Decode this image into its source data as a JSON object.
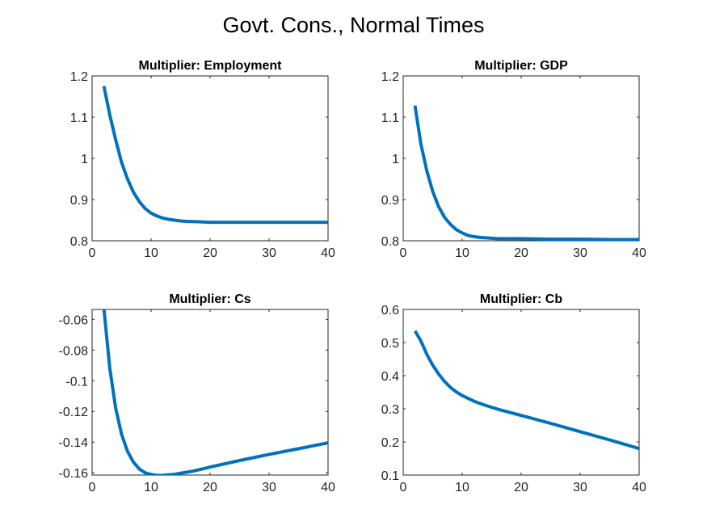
{
  "figure": {
    "title": "Govt. Cons., Normal Times",
    "line_color": "#0072BD"
  },
  "chart_data": [
    {
      "type": "line",
      "title": "Multiplier: Employment",
      "xlim": [
        0,
        40
      ],
      "ylim": [
        0.8,
        1.2
      ],
      "xticks": [
        "0",
        "10",
        "20",
        "30",
        "40"
      ],
      "yticks": [
        "0.8",
        "0.9",
        "1",
        "1.1",
        "1.2"
      ],
      "series": [
        {
          "x": [
            2,
            3,
            4,
            5,
            6,
            7,
            8,
            9,
            10,
            11,
            12,
            13,
            14,
            15,
            16,
            18,
            20,
            25,
            30,
            35,
            40
          ],
          "y": [
            1.175,
            1.105,
            1.045,
            0.99,
            0.95,
            0.918,
            0.895,
            0.878,
            0.867,
            0.86,
            0.855,
            0.852,
            0.85,
            0.848,
            0.847,
            0.846,
            0.845,
            0.845,
            0.845,
            0.845,
            0.845
          ]
        }
      ]
    },
    {
      "type": "line",
      "title": "Multiplier: GDP",
      "xlim": [
        0,
        40
      ],
      "ylim": [
        0.8,
        1.2
      ],
      "xticks": [
        "0",
        "10",
        "20",
        "30",
        "40"
      ],
      "yticks": [
        "0.8",
        "0.9",
        "1",
        "1.1",
        "1.2"
      ],
      "series": [
        {
          "x": [
            2,
            3,
            4,
            5,
            6,
            7,
            8,
            9,
            10,
            11,
            12,
            13,
            14,
            15,
            16,
            18,
            20,
            25,
            30,
            35,
            40
          ],
          "y": [
            1.128,
            1.035,
            0.97,
            0.92,
            0.883,
            0.857,
            0.84,
            0.827,
            0.819,
            0.813,
            0.81,
            0.808,
            0.807,
            0.806,
            0.805,
            0.805,
            0.805,
            0.804,
            0.804,
            0.803,
            0.803
          ]
        }
      ]
    },
    {
      "type": "line",
      "title": "Multiplier: Cs",
      "xlim": [
        0,
        40
      ],
      "ylim": [
        -0.1615,
        -0.0535
      ],
      "xticks": [
        "0",
        "10",
        "20",
        "30",
        "40"
      ],
      "yticks": [
        "-0.16",
        "-0.14",
        "-0.12",
        "-0.1",
        "-0.08",
        "-0.06"
      ],
      "ytick_values": [
        -0.16,
        -0.14,
        -0.12,
        -0.1,
        -0.08,
        -0.06
      ],
      "series": [
        {
          "x": [
            2,
            3,
            4,
            5,
            6,
            7,
            8,
            9,
            10,
            11,
            12,
            13,
            14,
            15,
            17,
            20,
            25,
            30,
            35,
            40
          ],
          "y": [
            -0.053,
            -0.092,
            -0.118,
            -0.135,
            -0.146,
            -0.153,
            -0.1575,
            -0.16,
            -0.1612,
            -0.1617,
            -0.1617,
            -0.1613,
            -0.161,
            -0.1603,
            -0.159,
            -0.1563,
            -0.152,
            -0.148,
            -0.1443,
            -0.1405
          ]
        }
      ]
    },
    {
      "type": "line",
      "title": "Multiplier: Cb",
      "xlim": [
        0,
        40
      ],
      "ylim": [
        0.1,
        0.6
      ],
      "xticks": [
        "0",
        "10",
        "20",
        "30",
        "40"
      ],
      "yticks": [
        "0.1",
        "0.2",
        "0.3",
        "0.4",
        "0.5",
        "0.6"
      ],
      "series": [
        {
          "x": [
            2,
            3,
            4,
            5,
            6,
            7,
            8,
            9,
            10,
            12,
            14,
            16,
            20,
            25,
            30,
            35,
            40
          ],
          "y": [
            0.535,
            0.505,
            0.465,
            0.432,
            0.405,
            0.383,
            0.365,
            0.351,
            0.34,
            0.323,
            0.31,
            0.299,
            0.28,
            0.256,
            0.231,
            0.206,
            0.18
          ]
        }
      ]
    }
  ]
}
